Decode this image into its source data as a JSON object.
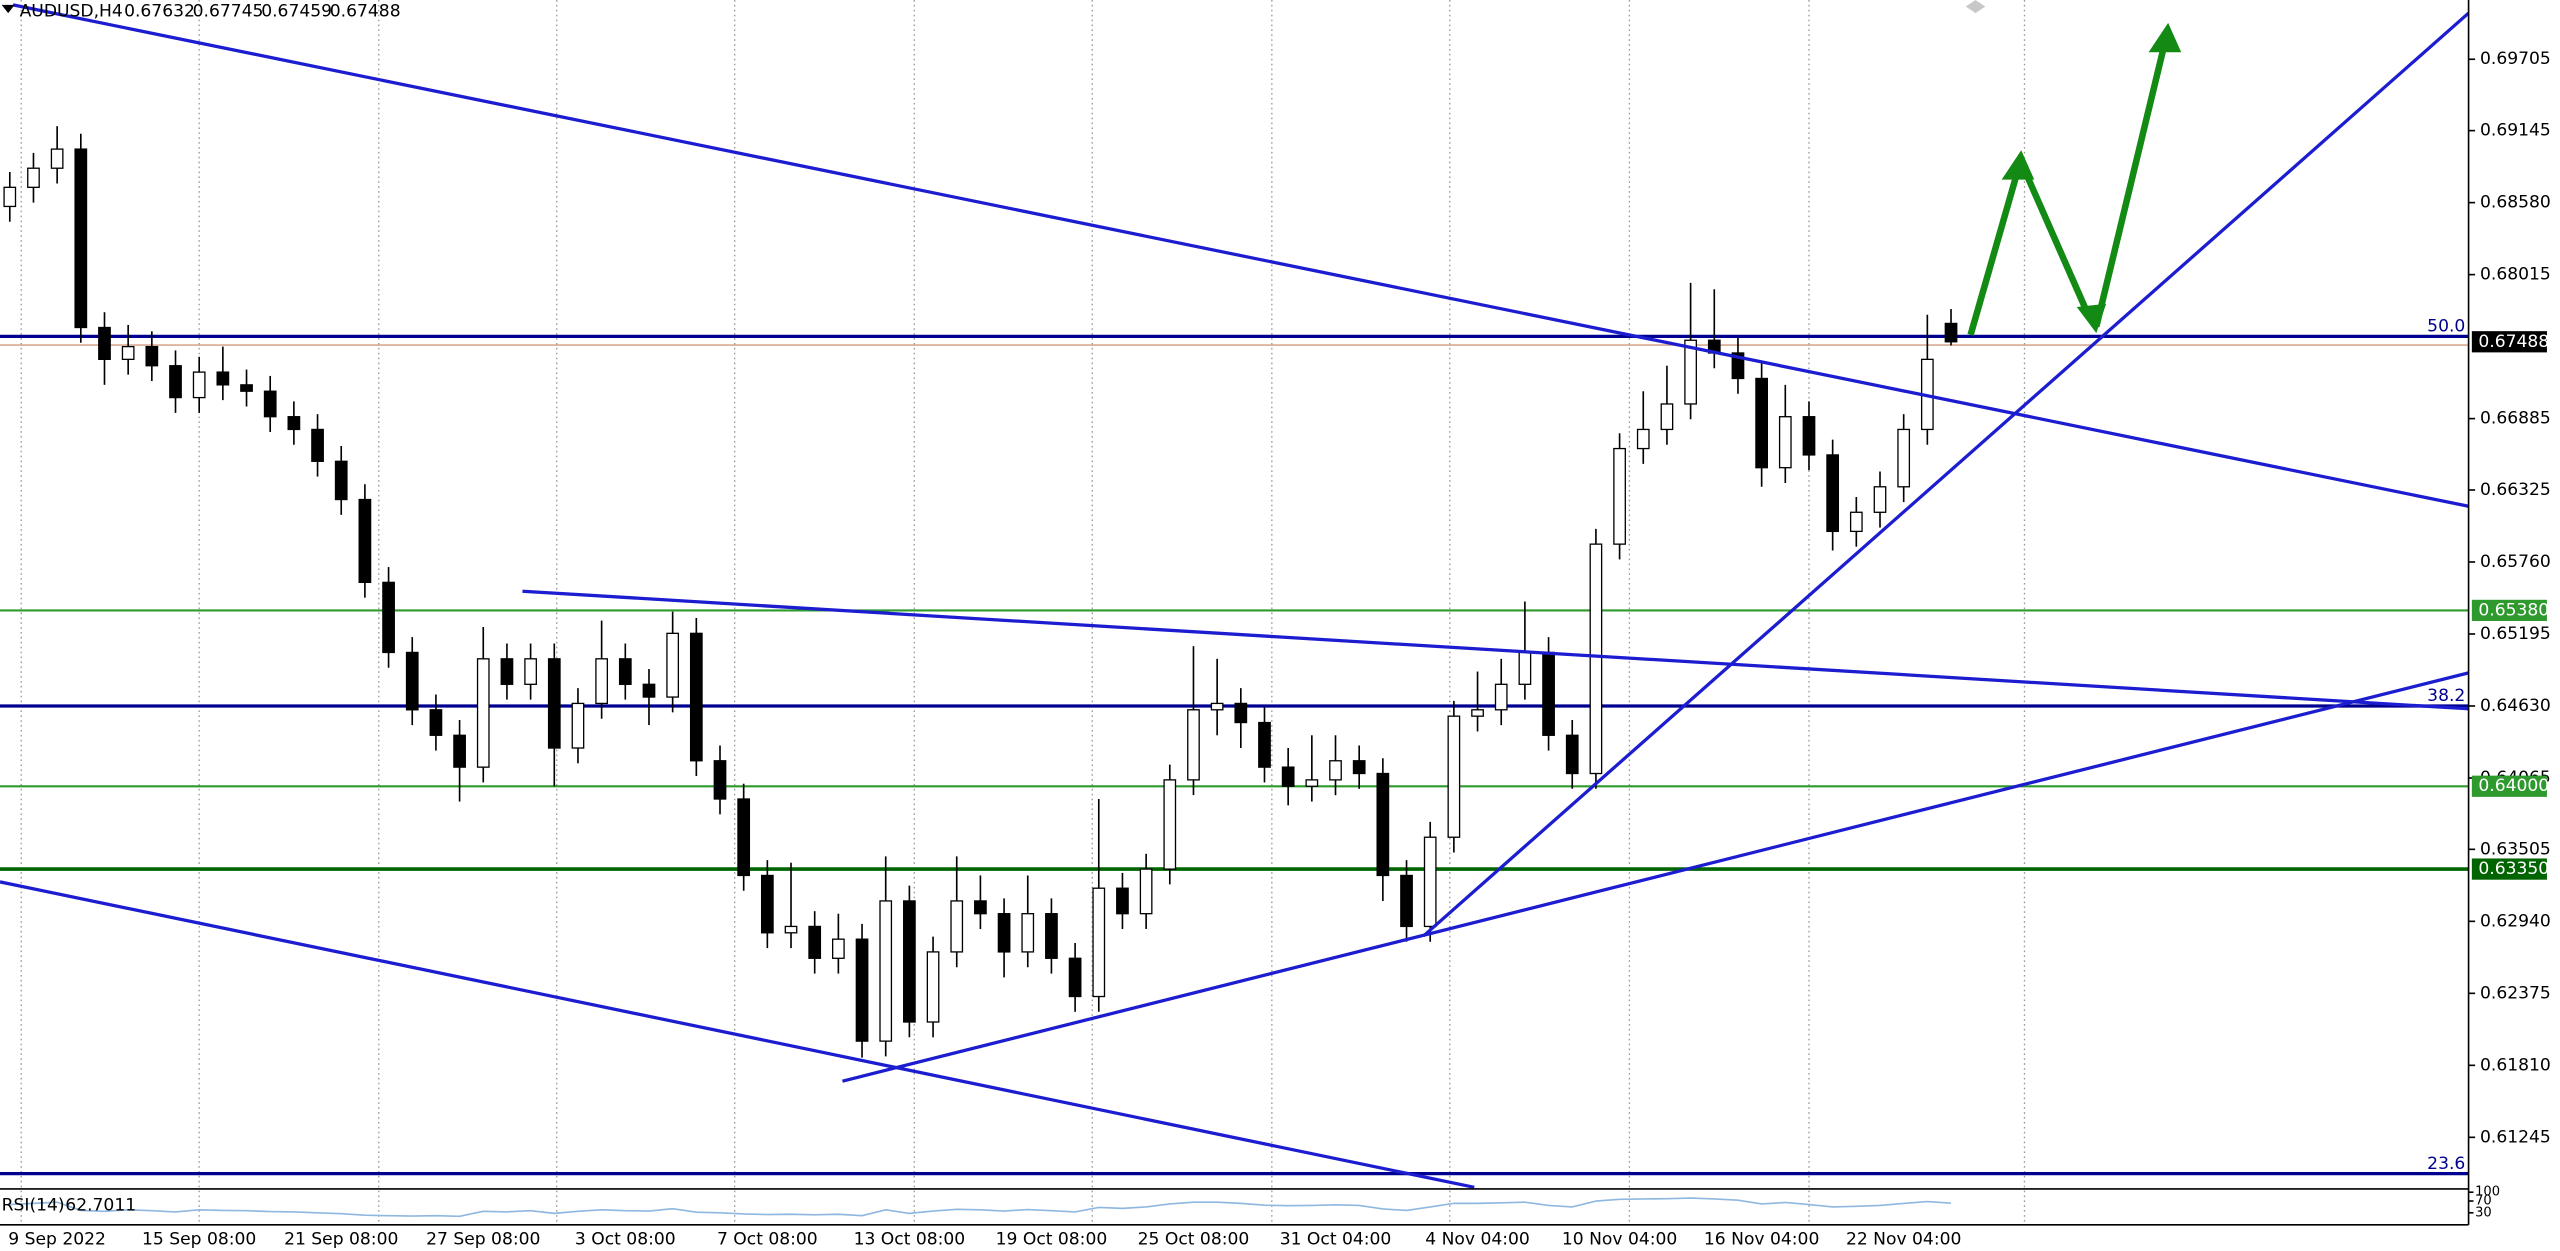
{
  "chart_data": {
    "type": "candlestick",
    "title": "AUDUSD,H4",
    "up_color": "#ffffff",
    "down_color": "#000000",
    "grid": true,
    "categories": [
      null,
      null,
      "9 Sep 2022",
      null,
      null,
      null,
      null,
      null,
      "15 Sep 08:00",
      null,
      null,
      null,
      null,
      null,
      "21 Sep 08:00",
      null,
      null,
      null,
      null,
      null,
      "27 Sep 08:00",
      null,
      null,
      null,
      null,
      null,
      "3 Oct 08:00",
      null,
      null,
      null,
      null,
      null,
      "7 Oct 08:00",
      null,
      null,
      null,
      null,
      null,
      "13 Oct 08:00",
      null,
      null,
      null,
      null,
      null,
      "19 Oct 08:00",
      null,
      null,
      null,
      null,
      null,
      "25 Oct 08:00",
      null,
      null,
      null,
      null,
      null,
      "31 Oct 04:00",
      null,
      null,
      null,
      null,
      null,
      "4 Nov 04:00",
      null,
      null,
      null,
      null,
      null,
      "10 Nov 04:00",
      null,
      null,
      null,
      null,
      null,
      "16 Nov 04:00",
      null,
      null,
      null,
      null,
      null,
      "22 Nov 04:00",
      null,
      null
    ],
    "candles": {
      "open": [
        0.6855,
        0.687,
        0.6885,
        0.69,
        0.676,
        0.6735,
        0.6745,
        0.673,
        0.6705,
        0.6725,
        0.6715,
        0.671,
        0.669,
        0.668,
        0.6655,
        0.6625,
        0.656,
        0.6505,
        0.646,
        0.644,
        0.6415,
        0.65,
        0.648,
        0.65,
        0.643,
        0.6465,
        0.65,
        0.648,
        0.647,
        0.652,
        0.642,
        0.639,
        0.633,
        0.6285,
        0.629,
        0.6265,
        0.628,
        0.62,
        0.631,
        0.6215,
        0.627,
        0.631,
        0.63,
        0.627,
        0.63,
        0.6265,
        0.6235,
        0.632,
        0.63,
        0.6335,
        0.6405,
        0.646,
        0.6465,
        0.645,
        0.6415,
        0.64,
        0.6405,
        0.642,
        0.641,
        0.633,
        0.629,
        0.636,
        0.6455,
        0.646,
        0.648,
        0.6505,
        0.644,
        0.641,
        0.659,
        0.6665,
        0.668,
        0.67,
        0.675,
        0.674,
        0.672,
        0.665,
        0.669,
        0.666,
        0.66,
        0.6615,
        0.6635,
        0.668,
        0.67632
      ],
      "high": [
        0.6882,
        0.6897,
        0.6918,
        0.6912,
        0.6772,
        0.6762,
        0.6757,
        0.6742,
        0.6737,
        0.6745,
        0.6727,
        0.6722,
        0.6702,
        0.6692,
        0.6667,
        0.6637,
        0.6572,
        0.6517,
        0.6472,
        0.6452,
        0.6525,
        0.6512,
        0.6512,
        0.6512,
        0.6477,
        0.653,
        0.6512,
        0.6492,
        0.6537,
        0.6532,
        0.6432,
        0.6402,
        0.6342,
        0.634,
        0.6302,
        0.63,
        0.6292,
        0.6345,
        0.6322,
        0.6282,
        0.6345,
        0.633,
        0.6312,
        0.633,
        0.6312,
        0.6277,
        0.639,
        0.6332,
        0.6347,
        0.6417,
        0.651,
        0.65,
        0.6477,
        0.6462,
        0.643,
        0.644,
        0.644,
        0.6432,
        0.6422,
        0.6342,
        0.6372,
        0.6467,
        0.649,
        0.65,
        0.6545,
        0.6517,
        0.6452,
        0.6602,
        0.6677,
        0.671,
        0.673,
        0.6795,
        0.679,
        0.6752,
        0.6732,
        0.6715,
        0.6702,
        0.6672,
        0.6627,
        0.6647,
        0.6692,
        0.677,
        0.67745
      ],
      "low": [
        0.6843,
        0.6858,
        0.6873,
        0.6748,
        0.6715,
        0.6723,
        0.6718,
        0.6693,
        0.6693,
        0.6703,
        0.6698,
        0.6678,
        0.6668,
        0.6643,
        0.6613,
        0.6548,
        0.6493,
        0.6448,
        0.6428,
        0.6388,
        0.6403,
        0.6468,
        0.6468,
        0.64,
        0.6418,
        0.6453,
        0.6468,
        0.6448,
        0.6458,
        0.6408,
        0.6378,
        0.6318,
        0.6273,
        0.6273,
        0.6253,
        0.6253,
        0.6187,
        0.6188,
        0.6203,
        0.6203,
        0.6258,
        0.6288,
        0.625,
        0.6258,
        0.6253,
        0.6223,
        0.6223,
        0.6288,
        0.6288,
        0.6323,
        0.6393,
        0.644,
        0.643,
        0.6403,
        0.6385,
        0.6388,
        0.6393,
        0.6398,
        0.631,
        0.6278,
        0.6278,
        0.6348,
        0.6443,
        0.6448,
        0.6468,
        0.6428,
        0.6398,
        0.6398,
        0.6578,
        0.6653,
        0.6668,
        0.6688,
        0.6728,
        0.6708,
        0.6635,
        0.6638,
        0.6648,
        0.6585,
        0.6588,
        0.6603,
        0.6623,
        0.6668,
        0.67459
      ],
      "close": [
        0.687,
        0.6885,
        0.69,
        0.676,
        0.6735,
        0.6745,
        0.673,
        0.6705,
        0.6725,
        0.6715,
        0.671,
        0.669,
        0.668,
        0.6655,
        0.6625,
        0.656,
        0.6505,
        0.646,
        0.644,
        0.6415,
        0.65,
        0.648,
        0.65,
        0.643,
        0.6465,
        0.65,
        0.648,
        0.647,
        0.652,
        0.642,
        0.639,
        0.633,
        0.6285,
        0.629,
        0.6265,
        0.628,
        0.62,
        0.631,
        0.6215,
        0.627,
        0.631,
        0.63,
        0.627,
        0.63,
        0.6265,
        0.6235,
        0.632,
        0.63,
        0.6335,
        0.6405,
        0.646,
        0.6465,
        0.645,
        0.6415,
        0.64,
        0.6405,
        0.642,
        0.641,
        0.633,
        0.629,
        0.636,
        0.6455,
        0.646,
        0.648,
        0.6505,
        0.644,
        0.641,
        0.659,
        0.6665,
        0.668,
        0.67,
        0.675,
        0.674,
        0.672,
        0.665,
        0.669,
        0.666,
        0.66,
        0.6615,
        0.6635,
        0.668,
        0.6735,
        0.67488
      ]
    },
    "ylim": [
      0.6084,
      0.7017
    ],
    "yticks": [
      0.69705,
      0.69145,
      {
        "value": 0.6858,
        "label": "0.68580"
      },
      0.68015,
      0.66885,
      0.66325,
      {
        "value": 0.6576,
        "label": "0.65760"
      },
      0.65195,
      {
        "value": 0.6463,
        "label": "0.64630"
      },
      0.64065,
      0.63505,
      {
        "value": 0.6294,
        "label": "0.62940"
      },
      0.62375,
      {
        "value": 0.6181,
        "label": "0.61810"
      },
      0.61245
    ],
    "price_levels": [
      {
        "value": 0.6538,
        "label": "0.65380",
        "color": "#2e9a2e"
      },
      {
        "value": 0.64,
        "label": "0.64000",
        "color": "#2e9a2e"
      },
      {
        "value": 0.6335,
        "label": "0.63350",
        "color": "#006400"
      }
    ],
    "fib_levels": [
      {
        "value": 0.6753,
        "label": "50.0",
        "color": "#000090"
      },
      {
        "value": 0.6463,
        "label": "38.2",
        "color": "#000090"
      },
      {
        "value": 0.6096,
        "label": "23.6",
        "color": "#000090"
      }
    ],
    "rsi": {
      "name": "RSI(14)",
      "color": "#8fb8e0",
      "ylim": [
        0,
        100
      ],
      "yticks": [
        100,
        70,
        30
      ],
      "values": [
        58,
        62,
        66,
        38,
        35,
        40,
        37,
        33,
        40,
        38,
        37,
        34,
        33,
        30,
        27,
        22,
        20,
        19,
        20,
        18,
        35,
        33,
        37,
        28,
        35,
        40,
        37,
        36,
        44,
        32,
        30,
        26,
        24,
        25,
        23,
        25,
        20,
        40,
        28,
        36,
        42,
        40,
        36,
        41,
        37,
        33,
        48,
        45,
        50,
        60,
        66,
        66,
        62,
        56,
        54,
        55,
        57,
        55,
        43,
        38,
        50,
        62,
        62,
        64,
        66,
        55,
        50,
        70,
        76,
        77,
        78,
        80,
        77,
        73,
        60,
        65,
        58,
        50,
        52,
        55,
        62,
        68,
        62.7011
      ]
    }
  }
}
